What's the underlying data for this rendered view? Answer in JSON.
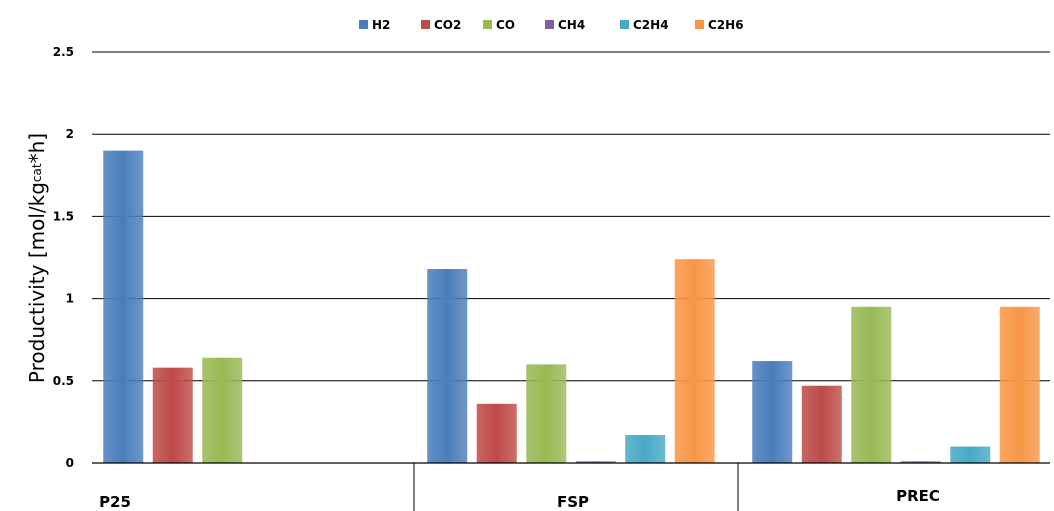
{
  "chart_data": {
    "type": "bar",
    "categories": [
      "P25",
      "FSP",
      "PREC"
    ],
    "series": [
      {
        "name": "H2",
        "values": [
          1.9,
          1.18,
          0.62
        ],
        "color": "#4a7ebb"
      },
      {
        "name": "CO2",
        "values": [
          0.58,
          0.36,
          0.47
        ],
        "color": "#be4b48"
      },
      {
        "name": "CO",
        "values": [
          0.64,
          0.6,
          0.95
        ],
        "color": "#98b954"
      },
      {
        "name": "CH4",
        "values": [
          0,
          0.01,
          0.01
        ],
        "color": "#7d60a0"
      },
      {
        "name": "C2H4",
        "values": [
          0,
          0.17,
          0.1
        ],
        "color": "#46aac5"
      },
      {
        "name": "C2H6",
        "values": [
          0,
          1.24,
          0.95
        ],
        "color": "#f79646"
      }
    ],
    "ylabel_main": "Productivity [mol/kg",
    "ylabel_sub": "cat",
    "ylabel_end": "*h]",
    "yticks": [
      "0",
      "0.5",
      "1",
      "1.5",
      "2",
      "2.5"
    ],
    "ylim": [
      0,
      2.5
    ],
    "legend_position": "top",
    "grid": true
  }
}
